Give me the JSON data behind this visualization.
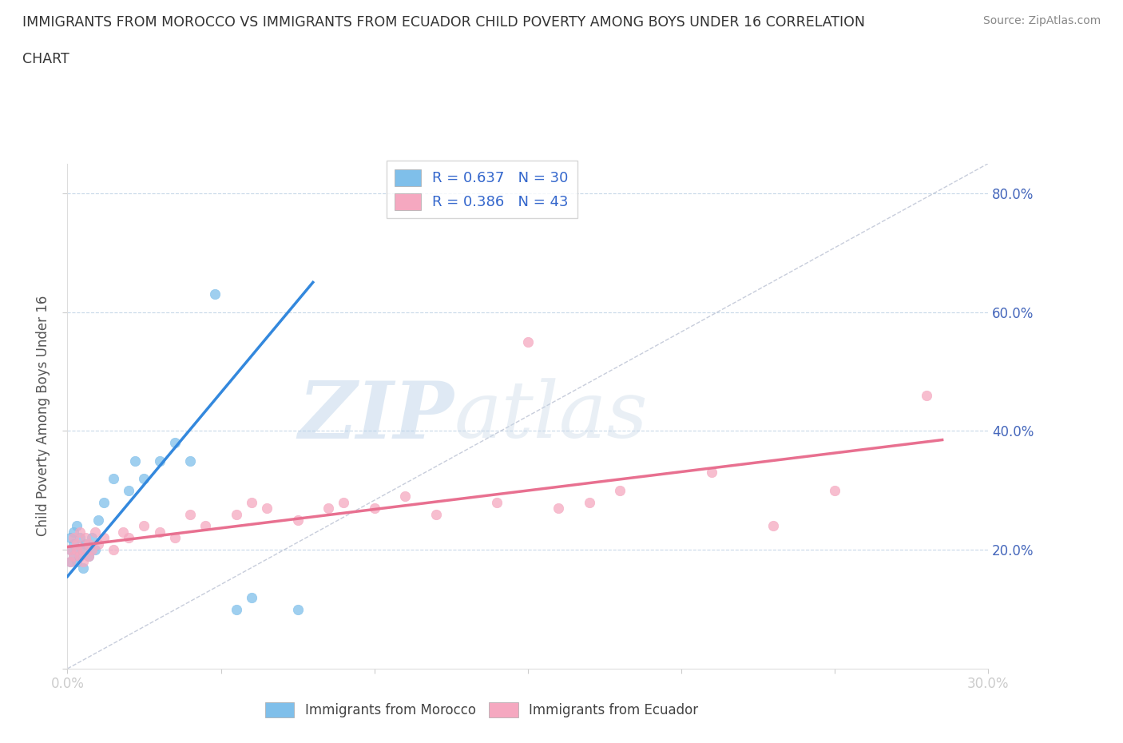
{
  "title_line1": "IMMIGRANTS FROM MOROCCO VS IMMIGRANTS FROM ECUADOR CHILD POVERTY AMONG BOYS UNDER 16 CORRELATION",
  "title_line2": "CHART",
  "source": "Source: ZipAtlas.com",
  "ylabel": "Child Poverty Among Boys Under 16",
  "xlim": [
    0.0,
    0.3
  ],
  "ylim": [
    0.0,
    0.85
  ],
  "x_ticks": [
    0.0,
    0.05,
    0.1,
    0.15,
    0.2,
    0.25,
    0.3
  ],
  "y_ticks": [
    0.0,
    0.2,
    0.4,
    0.6,
    0.8
  ],
  "morocco_color": "#7fbfea",
  "ecuador_color": "#f5a8c0",
  "morocco_line_color": "#3388dd",
  "ecuador_line_color": "#e87090",
  "morocco_R": 0.637,
  "morocco_N": 30,
  "ecuador_R": 0.386,
  "ecuador_N": 43,
  "watermark_zip": "ZIP",
  "watermark_atlas": "atlas",
  "background_color": "#ffffff",
  "grid_color": "#c8d8e8",
  "diag_color": "#b0b8cc",
  "morocco_scatter_x": [
    0.001,
    0.001,
    0.001,
    0.002,
    0.002,
    0.002,
    0.003,
    0.003,
    0.003,
    0.004,
    0.004,
    0.005,
    0.005,
    0.006,
    0.007,
    0.008,
    0.009,
    0.01,
    0.012,
    0.015,
    0.02,
    0.022,
    0.025,
    0.03,
    0.035,
    0.04,
    0.048,
    0.055,
    0.06,
    0.075
  ],
  "morocco_scatter_y": [
    0.2,
    0.18,
    0.22,
    0.19,
    0.21,
    0.23,
    0.2,
    0.18,
    0.24,
    0.19,
    0.22,
    0.17,
    0.2,
    0.21,
    0.19,
    0.22,
    0.2,
    0.25,
    0.28,
    0.32,
    0.3,
    0.35,
    0.32,
    0.35,
    0.38,
    0.35,
    0.63,
    0.1,
    0.12,
    0.1
  ],
  "ecuador_scatter_x": [
    0.001,
    0.001,
    0.002,
    0.002,
    0.003,
    0.003,
    0.004,
    0.004,
    0.005,
    0.005,
    0.006,
    0.007,
    0.007,
    0.008,
    0.009,
    0.01,
    0.012,
    0.015,
    0.018,
    0.02,
    0.025,
    0.03,
    0.035,
    0.04,
    0.045,
    0.055,
    0.06,
    0.065,
    0.075,
    0.085,
    0.09,
    0.1,
    0.11,
    0.12,
    0.14,
    0.15,
    0.16,
    0.17,
    0.18,
    0.21,
    0.23,
    0.25,
    0.28
  ],
  "ecuador_scatter_y": [
    0.2,
    0.18,
    0.22,
    0.19,
    0.2,
    0.21,
    0.19,
    0.23,
    0.18,
    0.2,
    0.22,
    0.19,
    0.21,
    0.2,
    0.23,
    0.21,
    0.22,
    0.2,
    0.23,
    0.22,
    0.24,
    0.23,
    0.22,
    0.26,
    0.24,
    0.26,
    0.28,
    0.27,
    0.25,
    0.27,
    0.28,
    0.27,
    0.29,
    0.26,
    0.28,
    0.55,
    0.27,
    0.28,
    0.3,
    0.33,
    0.24,
    0.3,
    0.46
  ],
  "morocco_regline_x": [
    0.0,
    0.08
  ],
  "morocco_regline_y": [
    0.155,
    0.65
  ],
  "ecuador_regline_x": [
    0.0,
    0.285
  ],
  "ecuador_regline_y": [
    0.205,
    0.385
  ]
}
